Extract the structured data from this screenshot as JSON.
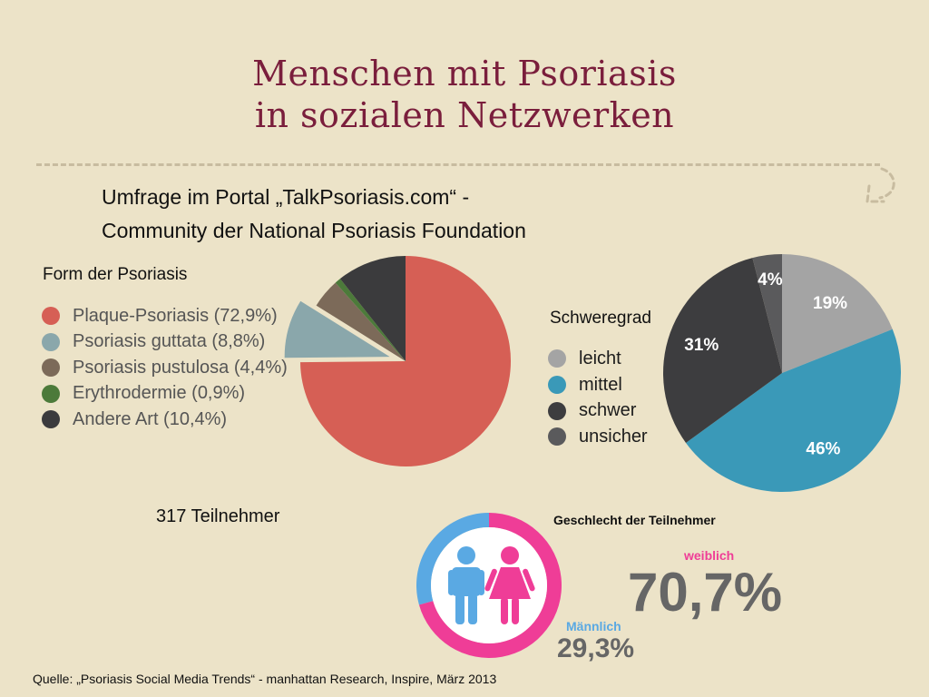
{
  "title_lines": [
    "Menschen mit Psoriasis",
    "in sozialen Netzwerken"
  ],
  "subtitle_lines": [
    "Umfrage im Portal „TalkPsoriasis.com“ -",
    "Community der National Psoriasis Foundation"
  ],
  "participants": "317 Teilnehmer",
  "source": "Quelle: „Psoriasis Social Media Trends“ - manhattan Research, Inspire, März 2013",
  "colors": {
    "title": "#7a1e3c",
    "background": "#ece3c8"
  },
  "chart_data": [
    {
      "type": "pie",
      "title": "Form der Psoriasis",
      "categories": [
        "Plaque-Psoriasis (72,9%)",
        "Psoriasis guttata (8,8%)",
        "Psoriasis pustulosa (4,4%)",
        "Erythrodermie (0,9%)",
        "Andere Art (10,4%)"
      ],
      "values": [
        72.9,
        8.8,
        4.4,
        0.9,
        10.4
      ],
      "colors": [
        "#d65f55",
        "#8aa7ab",
        "#7c6a59",
        "#4c7a3a",
        "#3b3b3d"
      ],
      "exploded": [
        false,
        true,
        false,
        false,
        false
      ],
      "legend": "left"
    },
    {
      "type": "pie",
      "title": "Schweregrad",
      "categories": [
        "leicht",
        "mittel",
        "schwer",
        "unsicher"
      ],
      "values": [
        19,
        46,
        31,
        4
      ],
      "labels": [
        "19%",
        "46%",
        "31%",
        "4%"
      ],
      "colors": [
        "#a4a4a4",
        "#3a99b8",
        "#3d3d3f",
        "#5a5a5c"
      ],
      "legend": "left"
    },
    {
      "type": "pie",
      "title": "Geschlecht der Teilnehmer",
      "categories": [
        "weiblich",
        "Männlich"
      ],
      "values": [
        70.7,
        29.3
      ],
      "labels": [
        "70,7%",
        "29,3%"
      ],
      "colors": [
        "#ef3d97",
        "#5aa9e3"
      ]
    }
  ]
}
